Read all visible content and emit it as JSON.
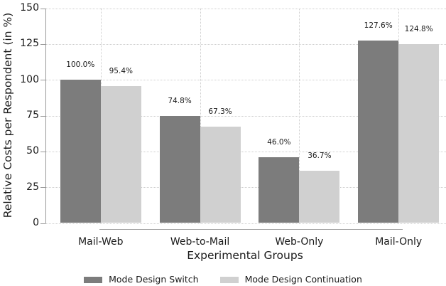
{
  "chart_data": {
    "type": "bar",
    "title": "",
    "xlabel": "Experimental Groups",
    "ylabel": "Relative Costs per Respondent (in %)",
    "categories": [
      "Mail-Web",
      "Web-to-Mail",
      "Web-Only",
      "Mail-Only"
    ],
    "series": [
      {
        "name": "Mode Design Switch",
        "color": "#7c7c7c",
        "values": [
          100.0,
          74.8,
          46.0,
          127.6
        ],
        "value_labels": [
          "100.0%",
          "74.8%",
          "46.0%",
          "127.6%"
        ]
      },
      {
        "name": "Mode Design Continuation",
        "color": "#d0d0d0",
        "values": [
          95.4,
          67.3,
          36.7,
          124.8
        ],
        "value_labels": [
          "95.4%",
          "67.3%",
          "36.7%",
          "124.8%"
        ]
      }
    ],
    "ylim": [
      0,
      150
    ],
    "yticks": [
      0,
      25,
      50,
      75,
      100,
      125,
      150
    ],
    "grid": "dotted",
    "gridline_color": "#cdcdcd",
    "axis_color": "#999999",
    "text_color": "#1a1a1a",
    "background_color": "#ffffff",
    "legend_position": "bottom"
  }
}
